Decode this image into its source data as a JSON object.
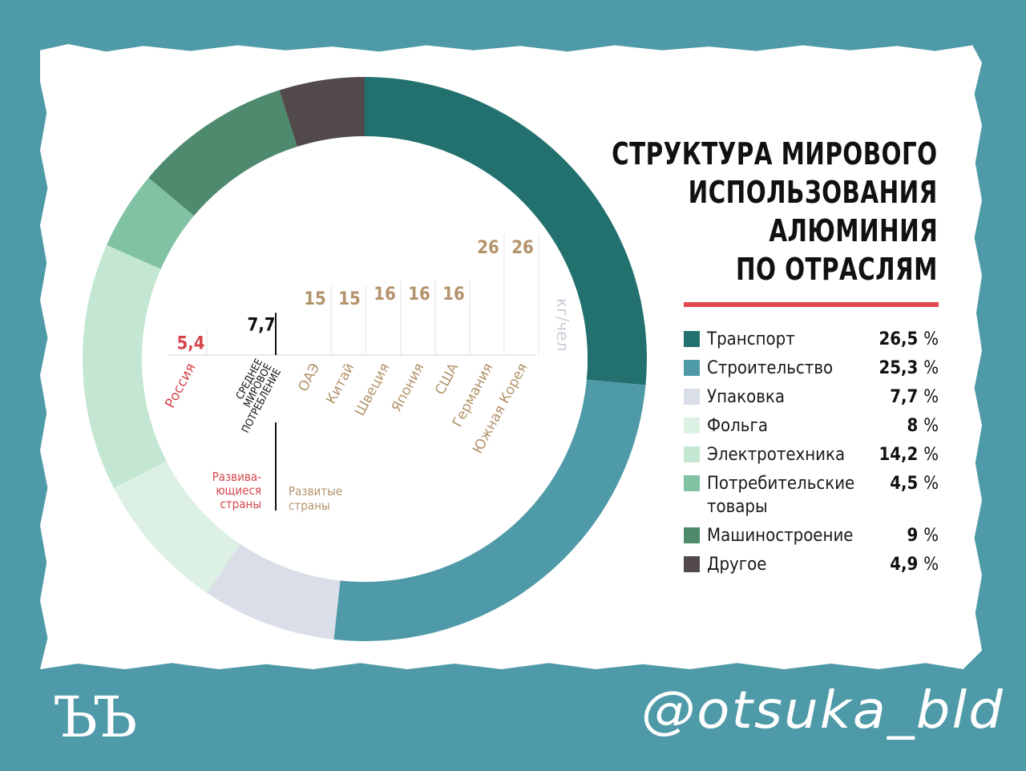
{
  "chart_data": [
    {
      "type": "pie",
      "variant": "donut",
      "title": "СТРУКТУРА МИРОВОГО ИСПОЛЬЗОВАНИЯ АЛЮМИНИЯ ПО ОТРАСЛЯМ",
      "title_lines": [
        "СТРУКТУРА МИРОВОГО",
        "ИСПОЛЬЗОВАНИЯ",
        "АЛЮМИНИЯ",
        "ПО ОТРАСЛЯМ"
      ],
      "legend_position": "right",
      "segments": [
        {
          "label": "Транспорт",
          "value": 26.5,
          "display": "26,5",
          "color": "#23716f"
        },
        {
          "label": "Строительство",
          "value": 25.3,
          "display": "25,3",
          "color": "#4f9aa8"
        },
        {
          "label": "Упаковка",
          "value": 7.7,
          "display": "7,7",
          "color": "#d9dee8"
        },
        {
          "label": "Фольга",
          "value": 8,
          "display": "8",
          "color": "#dcf1e4"
        },
        {
          "label": "Электротехника",
          "value": 14.2,
          "display": "14,2",
          "color": "#c3e7d2"
        },
        {
          "label": "Потребительские товары",
          "value": 4.5,
          "display": "4,5",
          "color": "#82c2a4"
        },
        {
          "label": "Машиностроение",
          "value": 9,
          "display": "9",
          "color": "#4d8a6e"
        },
        {
          "label": "Другое",
          "value": 4.9,
          "display": "4,9",
          "color": "#524a4a"
        }
      ]
    },
    {
      "type": "bar",
      "unit_label": "кг/чел",
      "baseline": "СРЕДНЕЕ МИРОВОЕ ПОТРЕБЛЕНИЕ",
      "baseline_value": 7.7,
      "baseline_display": "7,7",
      "categories": [
        "Россия",
        "ОАЭ",
        "Китай",
        "Швеция",
        "Япония",
        "США",
        "Германия",
        "Южная Корея"
      ],
      "values": [
        5.4,
        15,
        15,
        16,
        16,
        16,
        26,
        26
      ],
      "value_labels": [
        "5,4",
        "15",
        "15",
        "16",
        "16",
        "16",
        "26",
        "26"
      ],
      "groups": [
        {
          "name": "Развива-ющиеся страны",
          "lines": [
            "Развива-",
            "ющиеся",
            "страны"
          ],
          "color": "#d5474d"
        },
        {
          "name": "Развитые страны",
          "lines": [
            "Развитые",
            "страны"
          ],
          "color": "#b3936b"
        }
      ],
      "category_colors": [
        "#d5474d",
        "#b3936b",
        "#b3936b",
        "#b3936b",
        "#b3936b",
        "#b3936b",
        "#b3936b",
        "#b3936b"
      ],
      "baseline_color": "#111111",
      "unit_color": "#c9ccd6"
    }
  ],
  "footer": {
    "logo": "ЪЪ",
    "handle": "@otsuka_bld"
  }
}
